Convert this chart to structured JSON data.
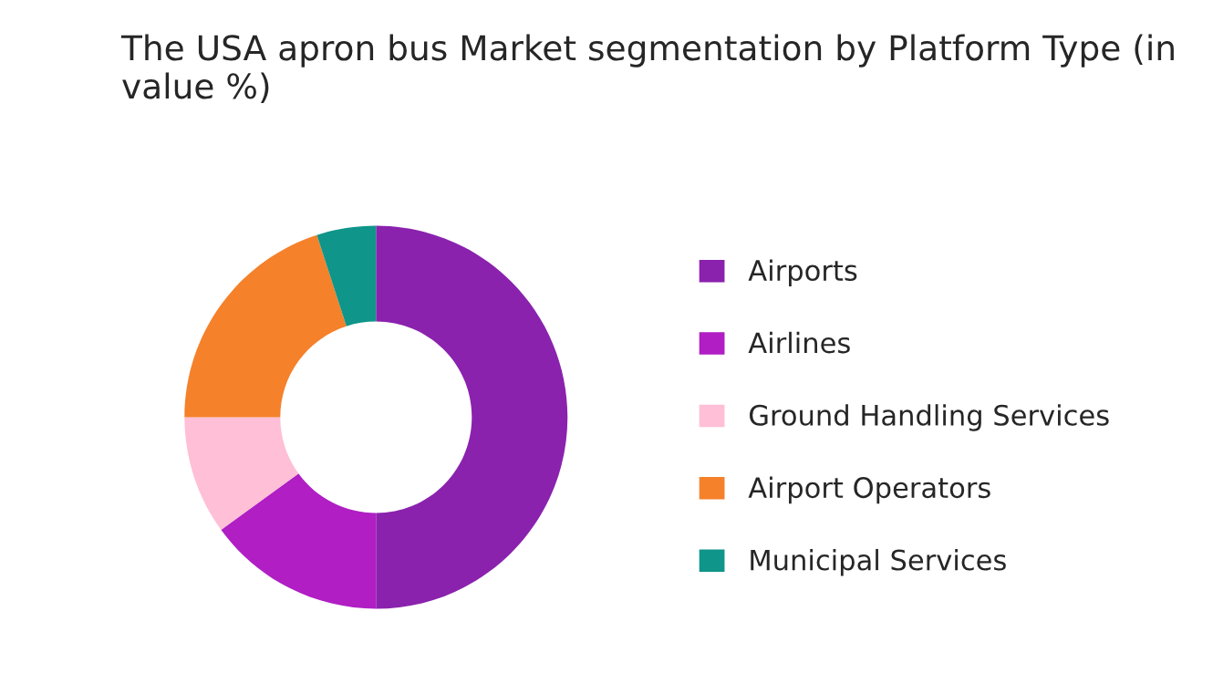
{
  "chart_data": {
    "type": "donut",
    "title": "The USA apron bus Market segmentation by Platform Type (in value %)",
    "categories": [
      "Airports",
      "Airlines",
      "Ground Handling Services",
      "Airport Operators",
      "Municipal Services"
    ],
    "values": [
      50,
      15,
      10,
      20,
      5
    ],
    "colors": [
      "#8a22ae",
      "#b01ec4",
      "#ffbfd6",
      "#f5812a",
      "#0f958a"
    ],
    "legend": "right"
  }
}
